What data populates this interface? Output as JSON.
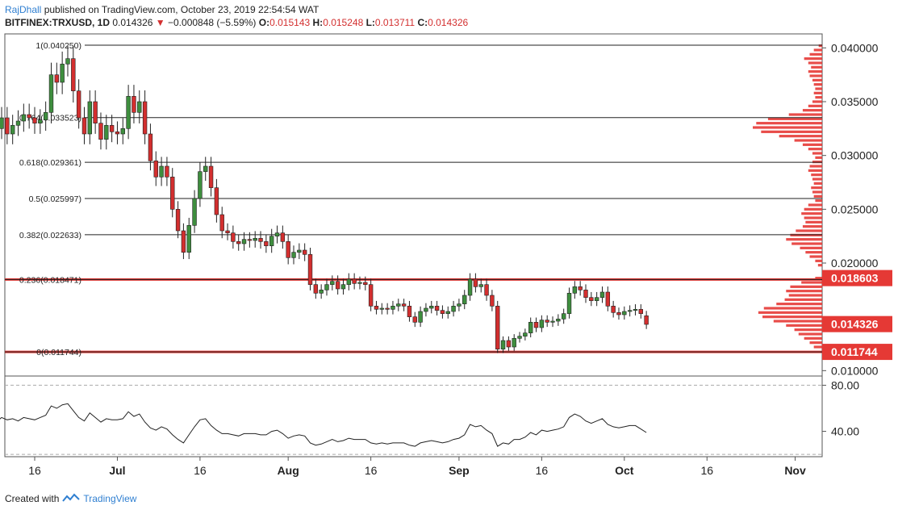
{
  "header": {
    "author": "RajDhall",
    "published": "published on TradingView.com, October 23, 2019 22:54:54 WAT",
    "symbol": "BITFINEX:TRXUSD, 1D",
    "last": "0.014326",
    "change": "−0.000848 (−5.59%)",
    "o_label": "O:",
    "o_value": "0.015143",
    "h_label": "H:",
    "h_value": "0.015248",
    "l_label": "L:",
    "l_value": "0.013711",
    "c_label": "C:",
    "c_value": "0.014326"
  },
  "footer": {
    "created_with": "Created with",
    "brand": "TradingView"
  },
  "colors": {
    "up": "#3e8e3e",
    "down": "#d32f2f",
    "fib_line": "#222222",
    "highlight_line": "#e53935",
    "volume_profile": "#e53935",
    "grid": "#cccccc"
  },
  "chart_data": {
    "type": "candlestick",
    "y_axis_ticks": [
      "0.040000",
      "0.035000",
      "0.030000",
      "0.025000",
      "0.020000",
      "0.010000"
    ],
    "ylim": [
      0.0095,
      0.0413
    ],
    "x_axis_ticks": [
      {
        "label": "16",
        "date": "2019-06-16"
      },
      {
        "label": "Jul",
        "date": "2019-07-01"
      },
      {
        "label": "16",
        "date": "2019-07-16"
      },
      {
        "label": "Aug",
        "date": "2019-08-01"
      },
      {
        "label": "16",
        "date": "2019-08-16"
      },
      {
        "label": "Sep",
        "date": "2019-09-01"
      },
      {
        "label": "16",
        "date": "2019-09-16"
      },
      {
        "label": "Oct",
        "date": "2019-10-01"
      },
      {
        "label": "16",
        "date": "2019-10-16"
      },
      {
        "label": "Nov",
        "date": "2019-11-01"
      }
    ],
    "price_badges": [
      {
        "label": "0.018603",
        "value": 0.018603
      },
      {
        "label": "0.014326",
        "value": 0.014326
      },
      {
        "label": "0.011744",
        "value": 0.011744
      }
    ],
    "fib_levels": [
      {
        "label": "1(0.040250)",
        "value": 0.04025
      },
      {
        "label": "0.764(0.033523)",
        "value": 0.033523
      },
      {
        "label": "0.618(0.029361)",
        "value": 0.029361
      },
      {
        "label": "0.5(0.025997)",
        "value": 0.025997
      },
      {
        "label": "0.382(0.022633)",
        "value": 0.022633
      },
      {
        "label": "0.236(0.018471)",
        "value": 0.018471
      },
      {
        "label": "0(0.011744)",
        "value": 0.011744
      }
    ],
    "candles": {
      "start_date": "2019-06-09",
      "close": [
        0.0325,
        0.0335,
        0.032,
        0.0328,
        0.0332,
        0.0338,
        0.0335,
        0.033,
        0.0333,
        0.034,
        0.0375,
        0.0368,
        0.0385,
        0.039,
        0.036,
        0.0335,
        0.032,
        0.035,
        0.033,
        0.0315,
        0.0328,
        0.0322,
        0.032,
        0.0325,
        0.0355,
        0.034,
        0.035,
        0.032,
        0.0295,
        0.028,
        0.029,
        0.028,
        0.025,
        0.023,
        0.021,
        0.0235,
        0.026,
        0.0285,
        0.029,
        0.027,
        0.0245,
        0.023,
        0.0228,
        0.022,
        0.0218,
        0.0222,
        0.0221,
        0.0223,
        0.022,
        0.0216,
        0.0225,
        0.0228,
        0.022,
        0.0205,
        0.021,
        0.0212,
        0.0208,
        0.018,
        0.0172,
        0.0175,
        0.018,
        0.0183,
        0.0176,
        0.018,
        0.0185,
        0.0181,
        0.0182,
        0.018,
        0.016,
        0.0157,
        0.0158,
        0.0157,
        0.016,
        0.0162,
        0.016,
        0.015,
        0.0145,
        0.0155,
        0.0158,
        0.016,
        0.0156,
        0.0153,
        0.0155,
        0.016,
        0.0162,
        0.017,
        0.0185,
        0.0178,
        0.018,
        0.017,
        0.016,
        0.012,
        0.0128,
        0.0122,
        0.013,
        0.0132,
        0.0135,
        0.0145,
        0.014,
        0.0147,
        0.0145,
        0.0146,
        0.0148,
        0.0153,
        0.0172,
        0.0178,
        0.0175,
        0.0168,
        0.0165,
        0.0168,
        0.0173,
        0.016,
        0.0154,
        0.0152,
        0.0155,
        0.0156,
        0.0157,
        0.0153,
        0.0143
      ],
      "open": [
        0.0315,
        0.0325,
        0.0335,
        0.032,
        0.0328,
        0.0332,
        0.0338,
        0.0335,
        0.033,
        0.0333,
        0.034,
        0.0375,
        0.0368,
        0.0385,
        0.039,
        0.036,
        0.0335,
        0.032,
        0.035,
        0.033,
        0.0315,
        0.0328,
        0.0322,
        0.032,
        0.0325,
        0.0355,
        0.034,
        0.035,
        0.032,
        0.0295,
        0.028,
        0.029,
        0.028,
        0.025,
        0.023,
        0.021,
        0.0235,
        0.026,
        0.0285,
        0.029,
        0.027,
        0.0245,
        0.023,
        0.0228,
        0.022,
        0.0218,
        0.0222,
        0.0221,
        0.0223,
        0.022,
        0.0216,
        0.0225,
        0.0228,
        0.022,
        0.0205,
        0.021,
        0.0212,
        0.0208,
        0.018,
        0.0172,
        0.0175,
        0.018,
        0.0183,
        0.0176,
        0.018,
        0.0185,
        0.0181,
        0.0182,
        0.018,
        0.016,
        0.0157,
        0.0158,
        0.0157,
        0.016,
        0.0162,
        0.016,
        0.015,
        0.0145,
        0.0155,
        0.0158,
        0.016,
        0.0156,
        0.0153,
        0.0155,
        0.016,
        0.0162,
        0.017,
        0.0185,
        0.0178,
        0.018,
        0.017,
        0.016,
        0.012,
        0.0128,
        0.0122,
        0.013,
        0.0132,
        0.0135,
        0.0145,
        0.014,
        0.0147,
        0.0145,
        0.0146,
        0.0148,
        0.0153,
        0.0172,
        0.0178,
        0.0175,
        0.0168,
        0.0165,
        0.0168,
        0.0173,
        0.016,
        0.0154,
        0.0152,
        0.0155,
        0.0156,
        0.0157,
        0.0151
      ]
    },
    "rsi": {
      "y_axis_ticks": [
        "80.00",
        "40.00"
      ],
      "ylim": [
        18,
        88
      ],
      "values": [
        48,
        52,
        50,
        51,
        49,
        52,
        51,
        50,
        52,
        54,
        62,
        60,
        63,
        64,
        58,
        52,
        49,
        56,
        52,
        48,
        51,
        50,
        50,
        51,
        57,
        53,
        55,
        48,
        43,
        41,
        44,
        42,
        37,
        33,
        30,
        37,
        44,
        50,
        51,
        45,
        41,
        38,
        38,
        37,
        36,
        38,
        38,
        38,
        37,
        37,
        40,
        41,
        38,
        34,
        36,
        37,
        36,
        30,
        28,
        29,
        31,
        33,
        31,
        32,
        34,
        33,
        33,
        33,
        30,
        29,
        30,
        29,
        30,
        30,
        30,
        28,
        27,
        30,
        31,
        32,
        31,
        30,
        31,
        33,
        34,
        37,
        46,
        44,
        45,
        41,
        38,
        27,
        30,
        29,
        33,
        33,
        35,
        39,
        37,
        41,
        40,
        41,
        42,
        44,
        52,
        55,
        53,
        49,
        47,
        49,
        51,
        46,
        44,
        43,
        44,
        45,
        45,
        42,
        39
      ]
    },
    "volume_profile": [
      {
        "price": 0.0402,
        "size": 0.05
      },
      {
        "price": 0.0398,
        "size": 0.12
      },
      {
        "price": 0.0394,
        "size": 0.18
      },
      {
        "price": 0.039,
        "size": 0.26
      },
      {
        "price": 0.0386,
        "size": 0.2
      },
      {
        "price": 0.0382,
        "size": 0.16
      },
      {
        "price": 0.0378,
        "size": 0.2
      },
      {
        "price": 0.0374,
        "size": 0.18
      },
      {
        "price": 0.037,
        "size": 0.14
      },
      {
        "price": 0.0366,
        "size": 0.12
      },
      {
        "price": 0.0362,
        "size": 0.1
      },
      {
        "price": 0.0358,
        "size": 0.12
      },
      {
        "price": 0.0354,
        "size": 0.1
      },
      {
        "price": 0.035,
        "size": 0.14
      },
      {
        "price": 0.0346,
        "size": 0.2
      },
      {
        "price": 0.0342,
        "size": 0.28
      },
      {
        "price": 0.0338,
        "size": 0.48
      },
      {
        "price": 0.0334,
        "size": 0.78
      },
      {
        "price": 0.033,
        "size": 0.95
      },
      {
        "price": 0.0326,
        "size": 1.0
      },
      {
        "price": 0.0322,
        "size": 0.88
      },
      {
        "price": 0.0318,
        "size": 0.62
      },
      {
        "price": 0.0314,
        "size": 0.4
      },
      {
        "price": 0.031,
        "size": 0.28
      },
      {
        "price": 0.0306,
        "size": 0.2
      },
      {
        "price": 0.0302,
        "size": 0.14
      },
      {
        "price": 0.0298,
        "size": 0.1
      },
      {
        "price": 0.0294,
        "size": 0.14
      },
      {
        "price": 0.029,
        "size": 0.18
      },
      {
        "price": 0.0286,
        "size": 0.2
      },
      {
        "price": 0.0282,
        "size": 0.16
      },
      {
        "price": 0.0278,
        "size": 0.14
      },
      {
        "price": 0.0274,
        "size": 0.12
      },
      {
        "price": 0.027,
        "size": 0.16
      },
      {
        "price": 0.0266,
        "size": 0.14
      },
      {
        "price": 0.0262,
        "size": 0.12
      },
      {
        "price": 0.0258,
        "size": 0.1
      },
      {
        "price": 0.0254,
        "size": 0.2
      },
      {
        "price": 0.025,
        "size": 0.26
      },
      {
        "price": 0.0246,
        "size": 0.3
      },
      {
        "price": 0.0242,
        "size": 0.26
      },
      {
        "price": 0.0238,
        "size": 0.24
      },
      {
        "price": 0.0234,
        "size": 0.28
      },
      {
        "price": 0.023,
        "size": 0.38
      },
      {
        "price": 0.0226,
        "size": 0.46
      },
      {
        "price": 0.0222,
        "size": 0.52
      },
      {
        "price": 0.0218,
        "size": 0.44
      },
      {
        "price": 0.0214,
        "size": 0.32
      },
      {
        "price": 0.021,
        "size": 0.24
      },
      {
        "price": 0.0206,
        "size": 0.18
      },
      {
        "price": 0.0202,
        "size": 0.1
      },
      {
        "price": 0.0198,
        "size": 0.06
      },
      {
        "price": 0.0186,
        "size": 0.1
      },
      {
        "price": 0.0182,
        "size": 0.3
      },
      {
        "price": 0.0178,
        "size": 0.46
      },
      {
        "price": 0.0174,
        "size": 0.52
      },
      {
        "price": 0.017,
        "size": 0.48
      },
      {
        "price": 0.0166,
        "size": 0.54
      },
      {
        "price": 0.0162,
        "size": 0.66
      },
      {
        "price": 0.0158,
        "size": 0.84
      },
      {
        "price": 0.0154,
        "size": 0.92
      },
      {
        "price": 0.015,
        "size": 0.86
      },
      {
        "price": 0.0146,
        "size": 0.7
      },
      {
        "price": 0.0142,
        "size": 0.52
      },
      {
        "price": 0.0138,
        "size": 0.4
      },
      {
        "price": 0.0134,
        "size": 0.34
      },
      {
        "price": 0.013,
        "size": 0.26
      },
      {
        "price": 0.0126,
        "size": 0.18
      },
      {
        "price": 0.0122,
        "size": 0.12
      }
    ]
  }
}
